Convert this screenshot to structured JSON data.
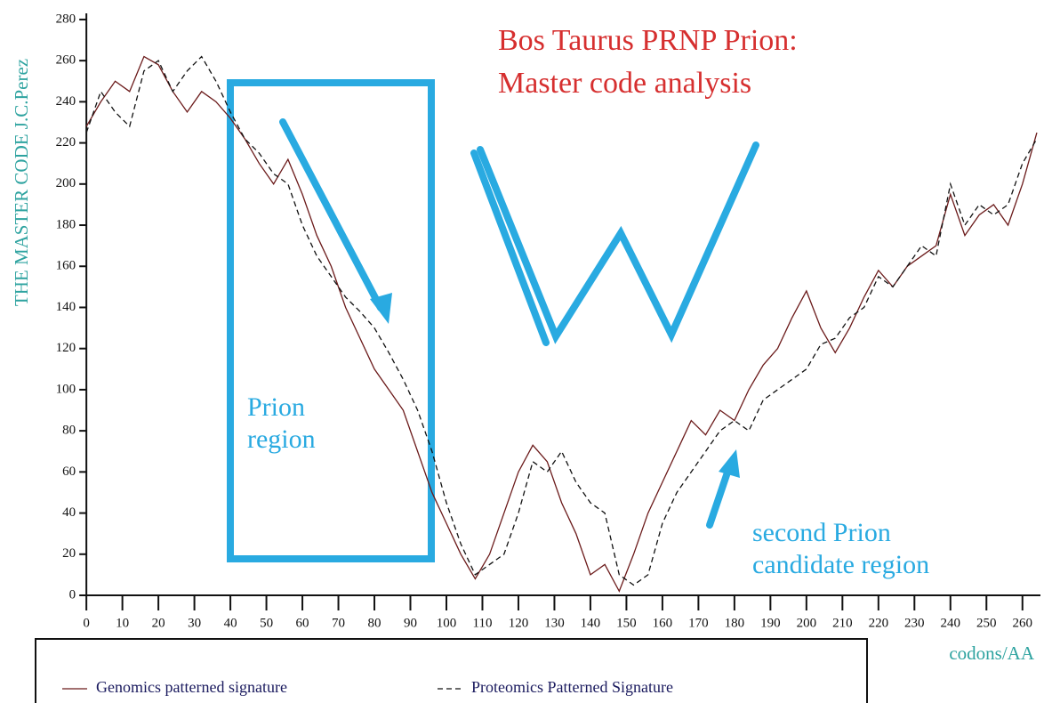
{
  "chart_data": {
    "type": "line",
    "title": [
      "Bos Taurus PRNP Prion:",
      "Master code analysis"
    ],
    "y_label": "THE MASTER CODE J.C.Perez",
    "x_label": "codons/AA",
    "annotations": [
      [
        "Prion",
        "region"
      ],
      [
        "second Prion",
        "candidate region"
      ]
    ],
    "x": [
      0,
      4,
      8,
      12,
      16,
      20,
      24,
      28,
      32,
      36,
      40,
      44,
      48,
      52,
      56,
      60,
      64,
      68,
      72,
      76,
      80,
      84,
      88,
      92,
      96,
      100,
      104,
      108,
      112,
      116,
      120,
      124,
      128,
      132,
      136,
      140,
      144,
      148,
      152,
      156,
      160,
      164,
      168,
      172,
      176,
      180,
      184,
      188,
      192,
      196,
      200,
      204,
      208,
      212,
      216,
      220,
      224,
      228,
      232,
      236,
      240,
      244,
      248,
      252,
      256,
      260,
      264
    ],
    "series": [
      {
        "name": "Genomics patterned signature",
        "color": "#6b1a1a",
        "dash": false,
        "values": [
          228,
          240,
          250,
          245,
          262,
          258,
          245,
          235,
          245,
          240,
          232,
          222,
          210,
          200,
          212,
          195,
          175,
          160,
          140,
          125,
          110,
          100,
          90,
          70,
          50,
          35,
          20,
          8,
          20,
          40,
          60,
          73,
          65,
          45,
          30,
          10,
          15,
          2,
          20,
          40,
          55,
          70,
          85,
          78,
          90,
          85,
          100,
          112,
          120,
          135,
          148,
          130,
          118,
          130,
          145,
          158,
          150,
          160,
          165,
          170,
          195,
          175,
          185,
          190,
          180,
          200,
          225
        ]
      },
      {
        "name": "Proteomics Patterned Signature",
        "color": "#111111",
        "dash": true,
        "values": [
          225,
          245,
          235,
          228,
          255,
          260,
          245,
          255,
          262,
          250,
          235,
          222,
          215,
          205,
          200,
          180,
          165,
          155,
          145,
          138,
          130,
          118,
          105,
          90,
          70,
          45,
          25,
          10,
          15,
          20,
          40,
          65,
          60,
          70,
          55,
          45,
          40,
          10,
          5,
          10,
          35,
          50,
          60,
          70,
          80,
          85,
          80,
          95,
          100,
          105,
          110,
          122,
          125,
          135,
          140,
          155,
          150,
          160,
          170,
          165,
          200,
          180,
          190,
          185,
          190,
          210,
          222
        ]
      }
    ],
    "xlim": [
      -3,
      265
    ],
    "ylim": [
      0,
      283
    ],
    "xticks": [
      0,
      10,
      20,
      30,
      40,
      50,
      60,
      70,
      80,
      90,
      100,
      110,
      120,
      130,
      140,
      150,
      160,
      170,
      180,
      190,
      200,
      210,
      220,
      230,
      240,
      250,
      260
    ],
    "yticks": [
      0,
      20,
      40,
      60,
      80,
      100,
      120,
      140,
      160,
      180,
      200,
      220,
      240,
      260,
      280
    ]
  }
}
